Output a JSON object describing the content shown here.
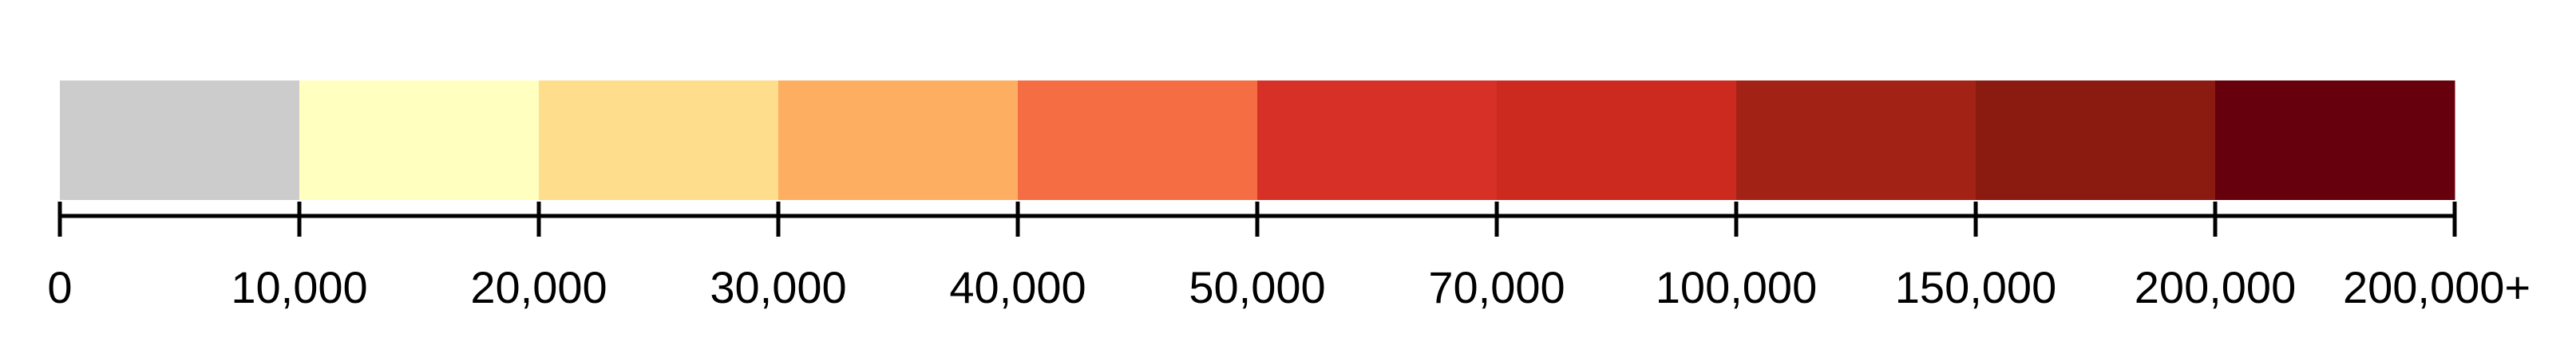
{
  "legend": {
    "swatches": [
      {
        "color": "#cccccc"
      },
      {
        "color": "#ffffbf"
      },
      {
        "color": "#fedd8d"
      },
      {
        "color": "#fdae61"
      },
      {
        "color": "#f46d43"
      },
      {
        "color": "#d73027"
      },
      {
        "color": "#cc2a1e"
      },
      {
        "color": "#a32216"
      },
      {
        "color": "#8b1a11"
      },
      {
        "color": "#67000d"
      }
    ],
    "tick_labels": [
      "0",
      "10,000",
      "20,000",
      "30,000",
      "40,000",
      "50,000",
      "70,000",
      "100,000",
      "150,000",
      "200,000",
      "200,000+"
    ],
    "axis_color": "#000000"
  }
}
